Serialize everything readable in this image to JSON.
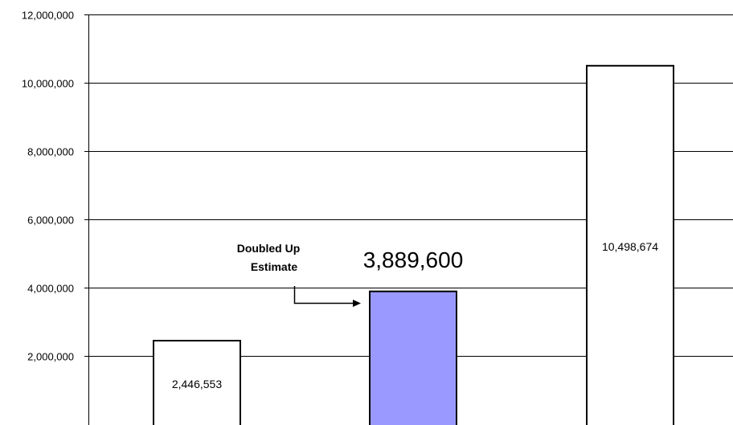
{
  "chart_data": {
    "type": "bar",
    "categories": [
      "",
      "",
      ""
    ],
    "values": [
      2446553,
      3889600,
      10498674
    ],
    "value_labels": [
      "2,446,553",
      "3,889,600",
      "10,498,674"
    ],
    "bar_colors": [
      "#ffffff",
      "#9999ff",
      "#ffffff"
    ],
    "ylim": [
      0,
      12000000
    ],
    "yticks": [
      0,
      2000000,
      4000000,
      6000000,
      8000000,
      10000000,
      12000000
    ],
    "ytick_labels": [
      "",
      "2,000,000",
      "4,000,000",
      "6,000,000",
      "8,000,000",
      "10,000,000",
      "12,000,000"
    ],
    "grid": true,
    "legend": "none",
    "title": "",
    "xlabel": "",
    "ylabel": "",
    "annotation": {
      "lines": [
        "Doubled Up",
        "Estimate"
      ],
      "target_bar": 1
    }
  }
}
